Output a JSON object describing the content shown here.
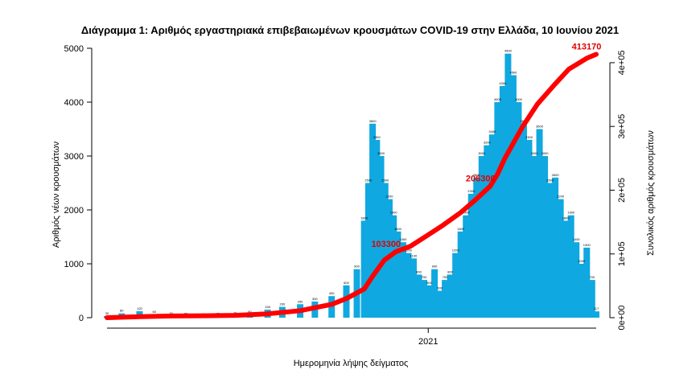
{
  "chart_data": {
    "type": "bar",
    "title": "Διάγραμμα 1: Αριθμός εργαστηριακά επιβεβαιωμένων κρουσμάτων COVID-19 στην Ελλάδα, 10 Ιουνίου 2021",
    "xlabel": "Ημερομηνία λήψης δείγματος",
    "ylabel": "Αριθμός νέων κρουσμάτων",
    "ylabel_right": "Συνολικός αριθμός κρουσμάτων",
    "x_tick_labels": [
      "2021"
    ],
    "y_ticks": [
      "0",
      "1000",
      "2000",
      "3000",
      "4000",
      "5000"
    ],
    "y_right_ticks": [
      "0e+00",
      "1e+05",
      "2e+05",
      "3e+05",
      "4e+05"
    ],
    "ylim": [
      0,
      5000
    ],
    "ylim_right": [
      0,
      410000
    ],
    "grid": false,
    "legend": "none",
    "colors": {
      "bars": "#10a8e0",
      "cumulative": "#ff0000",
      "annotation": "#e00000"
    },
    "series": [
      {
        "kind": "bar",
        "name": "",
        "color": "#10a8e0",
        "x": [
          "2020-03-01",
          "2020-03-15",
          "2020-04-01",
          "2020-04-15",
          "2020-05-01",
          "2020-05-15",
          "2020-06-01",
          "2020-06-15",
          "2020-07-01",
          "2020-07-15",
          "2020-08-01",
          "2020-08-15",
          "2020-09-01",
          "2020-09-15",
          "2020-10-01",
          "2020-10-15",
          "2020-10-25",
          "2020-11-01",
          "2020-11-05",
          "2020-11-09",
          "2020-11-13",
          "2020-11-17",
          "2020-11-21",
          "2020-11-25",
          "2020-11-29",
          "2020-12-03",
          "2020-12-08",
          "2020-12-13",
          "2020-12-18",
          "2020-12-23",
          "2020-12-28",
          "2021-01-02",
          "2021-01-07",
          "2021-01-12",
          "2021-01-17",
          "2021-01-22",
          "2021-01-27",
          "2021-02-01",
          "2021-02-06",
          "2021-02-11",
          "2021-02-16",
          "2021-02-21",
          "2021-02-26",
          "2021-03-03",
          "2021-03-08",
          "2021-03-13",
          "2021-03-18",
          "2021-03-23",
          "2021-03-28",
          "2021-04-02",
          "2021-04-07",
          "2021-04-12",
          "2021-04-17",
          "2021-04-22",
          "2021-04-27",
          "2021-05-02",
          "2021-05-07",
          "2021-05-12",
          "2021-05-17",
          "2021-05-22",
          "2021-05-27",
          "2021-06-01",
          "2021-06-06",
          "2021-06-10"
        ],
        "values": [
          30,
          80,
          120,
          60,
          30,
          20,
          15,
          25,
          40,
          60,
          150,
          200,
          250,
          300,
          400,
          600,
          900,
          1800,
          2500,
          3600,
          3300,
          3000,
          2500,
          2200,
          1900,
          1600,
          1400,
          1200,
          1100,
          800,
          700,
          600,
          900,
          500,
          700,
          800,
          1200,
          1600,
          1900,
          2300,
          2600,
          3000,
          3200,
          3400,
          4000,
          4300,
          4900,
          4500,
          4000,
          3600,
          3300,
          3000,
          3500,
          3000,
          2500,
          2600,
          2200,
          1800,
          1900,
          1400,
          1000,
          1300,
          700,
          117
        ]
      },
      {
        "kind": "line",
        "name": "",
        "color": "#ff0000",
        "x": [
          "2020-03-01",
          "2020-04-01",
          "2020-05-01",
          "2020-06-01",
          "2020-07-01",
          "2020-08-01",
          "2020-09-01",
          "2020-10-01",
          "2020-10-15",
          "2020-11-01",
          "2020-11-09",
          "2020-11-20",
          "2020-12-01",
          "2020-12-15",
          "2021-01-01",
          "2021-01-15",
          "2021-02-01",
          "2021-02-15",
          "2021-03-01",
          "2021-03-08",
          "2021-03-15",
          "2021-04-01",
          "2021-04-15",
          "2021-05-01",
          "2021-05-15",
          "2021-06-01",
          "2021-06-10"
        ],
        "values": [
          0,
          1500,
          2600,
          3000,
          3700,
          6000,
          11000,
          21000,
          30000,
          45000,
          65000,
          90000,
          103300,
          112000,
          130000,
          145000,
          165000,
          185000,
          206300,
          225000,
          250000,
          300000,
          335000,
          365000,
          390000,
          407000,
          413170
        ]
      }
    ],
    "annotations": [
      {
        "text": "103300",
        "x": "2020-12-01",
        "y": 103300
      },
      {
        "text": "206300",
        "x": "2021-03-01",
        "y": 206300
      },
      {
        "text": "413170",
        "x": "2021-06-10",
        "y": 413170
      }
    ]
  }
}
